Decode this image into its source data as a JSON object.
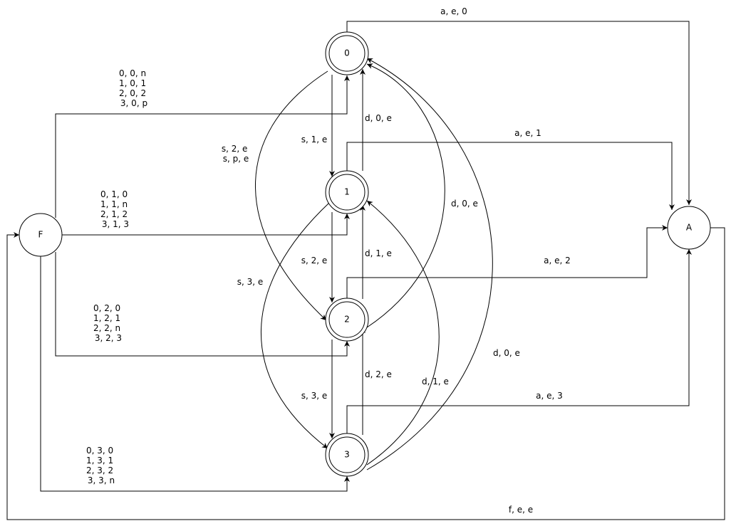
{
  "nodes": {
    "s0": "0",
    "s1": "1",
    "s2": "2",
    "s3": "3",
    "F": "F",
    "A": "A"
  },
  "edges": {
    "s0_A": [
      "a, e, 0"
    ],
    "s1_A": [
      "a, e, 1"
    ],
    "s2_A": [
      "a, e, 2"
    ],
    "s3_A": [
      "a, e, 3"
    ],
    "F_s0": [
      "0, 0, n",
      "1, 0, 1",
      "2, 0, 2",
      "3, 0, p"
    ],
    "F_s1": [
      "0, 1, 0",
      "1, 1, n",
      "2, 1, 2",
      "3, 1, 3"
    ],
    "F_s2": [
      "0, 2, 0",
      "1, 2, 1",
      "2, 2, n",
      "3, 2, 3"
    ],
    "F_s3": [
      "0, 3, 0",
      "1, 3, 1",
      "2, 3, 2",
      "3, 3, n"
    ],
    "s0_s1": [
      "s, 1, e"
    ],
    "s1_s0": [
      "d, 0, e"
    ],
    "s0_s2": [
      "s, 2, e",
      "s, p, e"
    ],
    "s2_s0": [
      "d, 0, e"
    ],
    "s1_s2": [
      "s, 2, e"
    ],
    "s2_s1": [
      "d, 1, e"
    ],
    "s1_s3": [
      "s, 3, e"
    ],
    "s3_s1": [
      "d, 1, e"
    ],
    "s2_s3": [
      "s, 3, e"
    ],
    "s3_s2": [
      "d, 2, e"
    ],
    "s3_s0": [
      "d, 0, e"
    ],
    "A_F": [
      "f, e, e"
    ]
  }
}
